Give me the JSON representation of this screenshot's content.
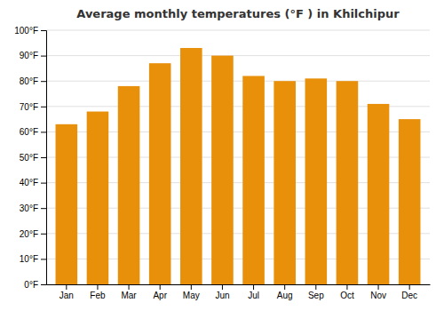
{
  "chart_data": {
    "type": "bar",
    "title": "Average monthly temperatures (°F ) in Khilchipur",
    "categories": [
      "Jan",
      "Feb",
      "Mar",
      "Apr",
      "May",
      "Jun",
      "Jul",
      "Aug",
      "Sep",
      "Oct",
      "Nov",
      "Dec"
    ],
    "values": [
      63,
      68,
      78,
      87,
      93,
      90,
      82,
      80,
      81,
      80,
      71,
      65
    ],
    "color": "#E8900A",
    "ylim": [
      0,
      100
    ],
    "yticks": [
      {
        "value": 0,
        "label": "0°F"
      },
      {
        "value": 10,
        "label": "10°F"
      },
      {
        "value": 20,
        "label": "20°F"
      },
      {
        "value": 30,
        "label": "30°F"
      },
      {
        "value": 40,
        "label": "40°F"
      },
      {
        "value": 50,
        "label": "50°F"
      },
      {
        "value": 60,
        "label": "60°F"
      },
      {
        "value": 70,
        "label": "70°F"
      },
      {
        "value": 80,
        "label": "80°F"
      },
      {
        "value": 90,
        "label": "90°F"
      },
      {
        "value": 100,
        "label": "100°F"
      }
    ],
    "grid": true
  }
}
